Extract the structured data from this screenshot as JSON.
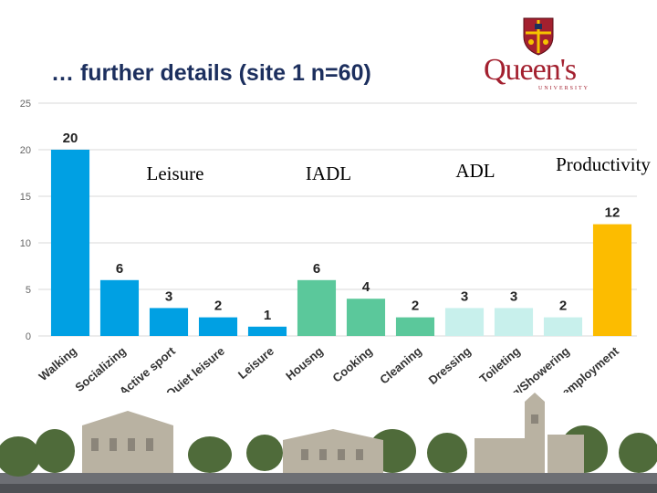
{
  "title": "… further details (site 1 n=60)",
  "logo": {
    "text": "Queen's",
    "subtext": "UNIVERSITY"
  },
  "colors": {
    "leisure": "#00a0e3",
    "iadl": "#5bc89b",
    "adl": "#c8f0ec",
    "productivity": "#fcbc00",
    "title": "#1c2f5e",
    "logo": "#a3202f"
  },
  "chart_data": {
    "type": "bar",
    "ylim": [
      0,
      25
    ],
    "yticks": [
      0,
      5,
      10,
      15,
      20,
      25
    ],
    "grid": true,
    "categories": [
      "Walking",
      "Socializing",
      "Active sport",
      "Quiet leisure",
      "Leisure",
      "Housng",
      "Cooking",
      "Cleaning",
      "Dressing",
      "Toileting",
      "Bathing/Showering",
      "Paid employment"
    ],
    "values": [
      20,
      6,
      3,
      2,
      1,
      6,
      4,
      2,
      3,
      3,
      2,
      12
    ],
    "groups": [
      {
        "name": "Leisure",
        "color_key": "leisure",
        "members": [
          0,
          1,
          2,
          3,
          4
        ]
      },
      {
        "name": "IADL",
        "color_key": "iadl",
        "members": [
          5,
          6,
          7
        ]
      },
      {
        "name": "ADL",
        "color_key": "adl",
        "members": [
          8,
          9,
          10
        ]
      },
      {
        "name": "Productivity",
        "color_key": "productivity",
        "members": [
          11
        ]
      }
    ]
  }
}
